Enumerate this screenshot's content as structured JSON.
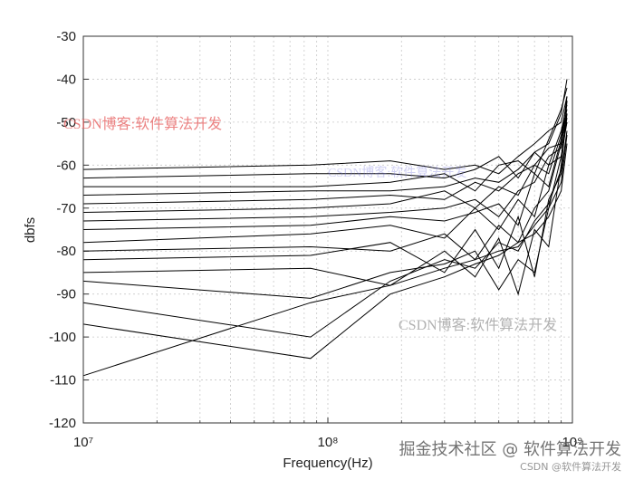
{
  "chart_data": {
    "type": "line",
    "xlabel": "Frequency(Hz)",
    "ylabel": "dbfs",
    "xscale": "log",
    "xlim": [
      10000000,
      1000000000
    ],
    "xticks": [
      {
        "value": 10000000,
        "label": "10⁷"
      },
      {
        "value": 100000000,
        "label": "10⁸"
      },
      {
        "value": 1000000000,
        "label": "10⁹"
      }
    ],
    "xminorticks": [
      20000000,
      30000000,
      40000000,
      50000000,
      60000000,
      70000000,
      80000000,
      90000000,
      200000000,
      300000000,
      400000000,
      500000000,
      600000000,
      700000000,
      800000000,
      900000000
    ],
    "ylim": [
      -120,
      -30
    ],
    "yticks": [
      -120,
      -110,
      -100,
      -90,
      -80,
      -70,
      -60,
      -50,
      -40,
      -30
    ],
    "grid": true,
    "color": "#000000",
    "x": [
      10000000,
      85000000,
      180000000,
      300000000,
      400000000,
      500000000,
      600000000,
      700000000,
      800000000,
      900000000,
      950000000
    ],
    "series": [
      {
        "values": [
          -61,
          -60,
          -59,
          -61,
          -60,
          -62,
          -58,
          -55,
          -52,
          -50,
          -44
        ]
      },
      {
        "values": [
          -63,
          -62,
          -62,
          -63,
          -61,
          -58,
          -63,
          -57,
          -55,
          -48,
          -40
        ]
      },
      {
        "values": [
          -65,
          -65,
          -64,
          -62,
          -66,
          -60,
          -59,
          -62,
          -54,
          -47,
          -42
        ]
      },
      {
        "values": [
          -67,
          -66,
          -66,
          -65,
          -63,
          -64,
          -61,
          -57,
          -60,
          -52,
          -46
        ]
      },
      {
        "values": [
          -69,
          -68,
          -67,
          -68,
          -64,
          -66,
          -62,
          -60,
          -56,
          -55,
          -48
        ]
      },
      {
        "values": [
          -71,
          -70,
          -69,
          -66,
          -70,
          -65,
          -67,
          -60,
          -62,
          -53,
          -45
        ]
      },
      {
        "values": [
          -73,
          -72,
          -71,
          -70,
          -68,
          -72,
          -66,
          -64,
          -58,
          -56,
          -50
        ]
      },
      {
        "values": [
          -75,
          -74,
          -72,
          -73,
          -71,
          -69,
          -74,
          -62,
          -65,
          -54,
          -47
        ]
      },
      {
        "values": [
          -78,
          -76,
          -74,
          -77,
          -70,
          -75,
          -68,
          -72,
          -60,
          -58,
          -49
        ]
      },
      {
        "values": [
          -80,
          -79,
          -80,
          -76,
          -82,
          -74,
          -78,
          -70,
          -66,
          -55,
          -44
        ]
      },
      {
        "values": [
          -82,
          -81,
          -78,
          -85,
          -75,
          -84,
          -72,
          -86,
          -68,
          -62,
          -52
        ]
      },
      {
        "values": [
          -85,
          -84,
          -88,
          -80,
          -86,
          -77,
          -90,
          -75,
          -79,
          -60,
          -48
        ]
      },
      {
        "values": [
          -87,
          -91,
          -85,
          -83,
          -80,
          -89,
          -82,
          -85,
          -70,
          -58,
          -50
        ]
      },
      {
        "values": [
          -97,
          -105,
          -90,
          -86,
          -83,
          -81,
          -78,
          -76,
          -72,
          -66,
          -55
        ]
      },
      {
        "values": [
          -109,
          -92,
          -88,
          -84,
          -82,
          -80,
          -79,
          -74,
          -70,
          -64,
          -53
        ]
      },
      {
        "values": [
          -92,
          -100,
          -87,
          -82,
          -84,
          -78,
          -80,
          -73,
          -69,
          -61,
          -45
        ]
      }
    ],
    "watermarks": [
      "CSDN博客:软件算法开发",
      "CSDN博客:软件算法开发",
      "CSDN博客:软件算法开发",
      "掘金技术社区 @ 软件算法开发",
      "CSDN @软件算法开发"
    ]
  }
}
